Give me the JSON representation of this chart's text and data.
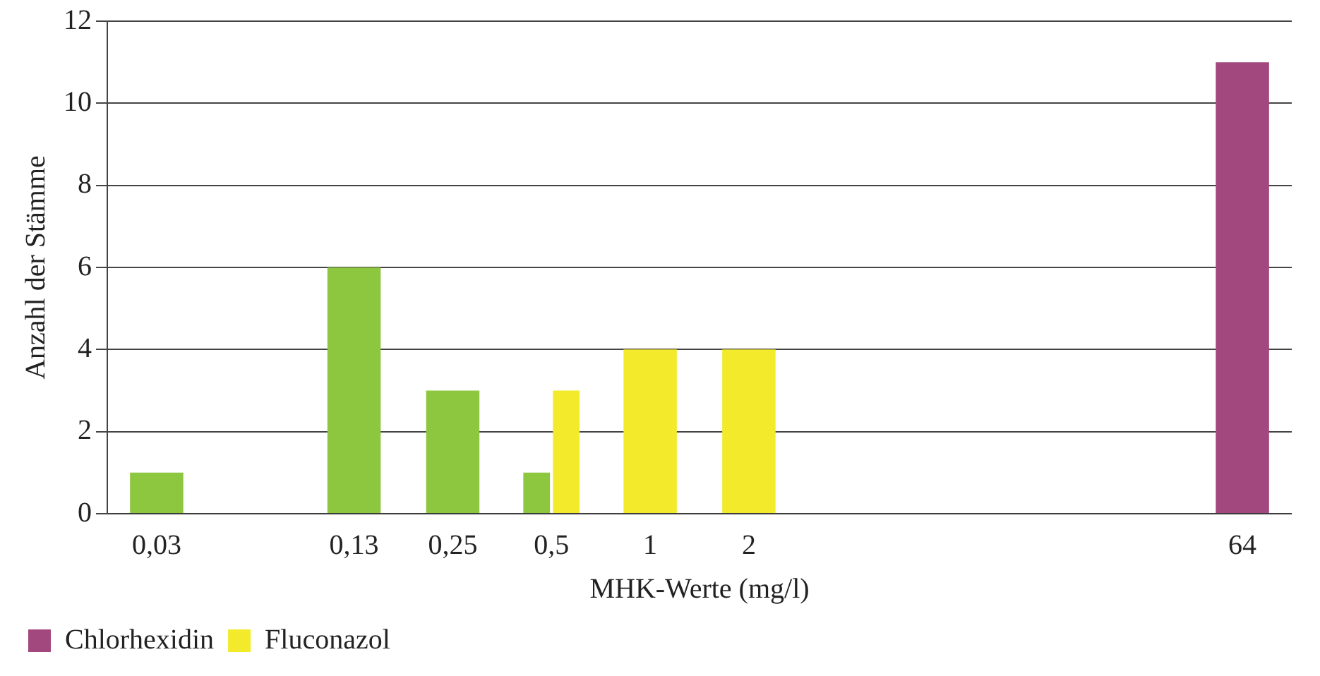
{
  "chart_data": {
    "type": "bar",
    "xlabel": "MHK-Werte (mg/l)",
    "ylabel": "Anzahl der Stämme",
    "categories": [
      "0,03",
      null,
      "0,13",
      "0,25",
      "0,5",
      "1",
      "2",
      null,
      null,
      null,
      null,
      "64"
    ],
    "series": [
      {
        "color": "#8dc63f",
        "values": [
          1,
          null,
          6,
          3,
          1,
          null,
          null,
          null,
          null,
          null,
          null,
          null
        ]
      },
      {
        "name": "Chlorhexidin",
        "color": "#a3487e",
        "values": [
          null,
          null,
          null,
          null,
          null,
          null,
          null,
          null,
          null,
          null,
          null,
          11
        ]
      },
      {
        "name": "Fluconazol",
        "color": "#f2ea2a",
        "values": [
          null,
          null,
          null,
          null,
          3,
          4,
          4,
          null,
          null,
          null,
          null,
          null
        ]
      }
    ],
    "ylim": [
      0,
      12
    ],
    "yticks": [
      0,
      2,
      4,
      6,
      8,
      10,
      12
    ],
    "grid": "y",
    "legend": "bottom"
  }
}
